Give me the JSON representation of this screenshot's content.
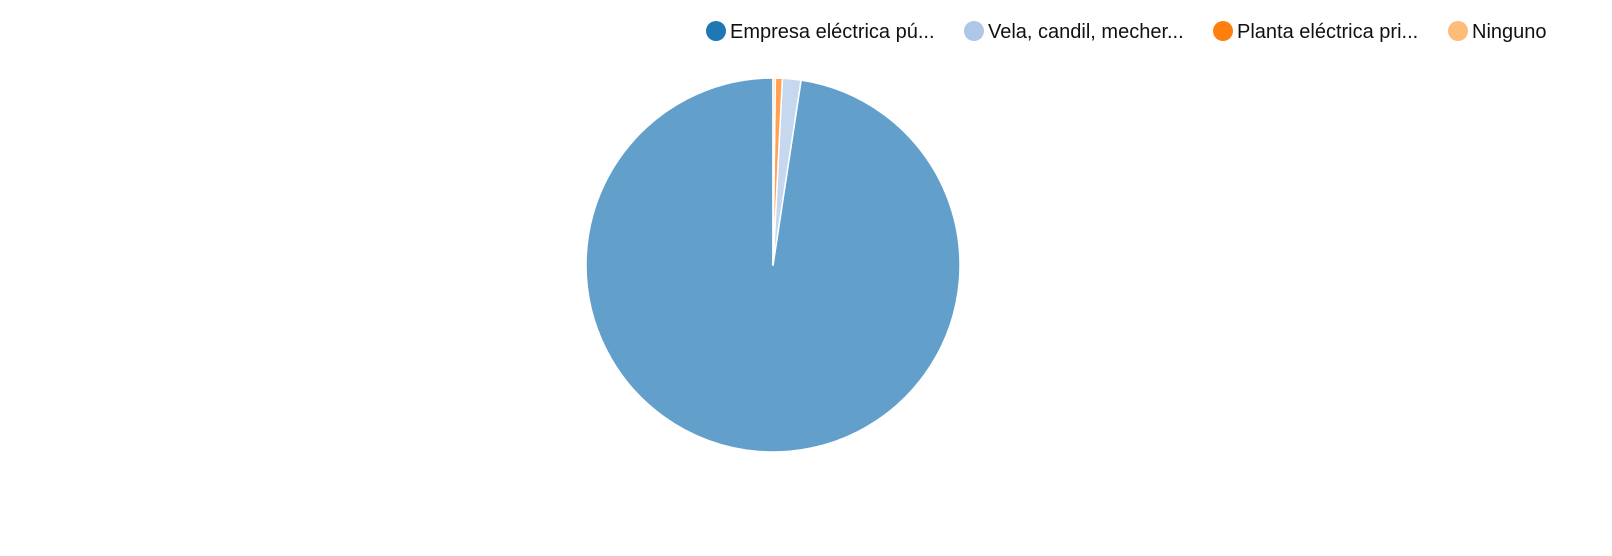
{
  "chart_data": {
    "type": "pie",
    "title": "",
    "legend_position": "top-right",
    "slices": [
      {
        "label": "Empresa eléctrica pú...",
        "value": 97.6,
        "color": "#1f77b4",
        "fill": "#62a0cb"
      },
      {
        "label": "Vela, candil, mecher...",
        "value": 1.6,
        "color": "#aec7e8",
        "fill": "#c5d8ef"
      },
      {
        "label": "Planta eléctrica pri...",
        "value": 0.6,
        "color": "#ff7f0e",
        "fill": "#ffa052"
      },
      {
        "label": "Ninguno",
        "value": 0.2,
        "color": "#ffbb78",
        "fill": "#ffcf9f"
      }
    ]
  }
}
